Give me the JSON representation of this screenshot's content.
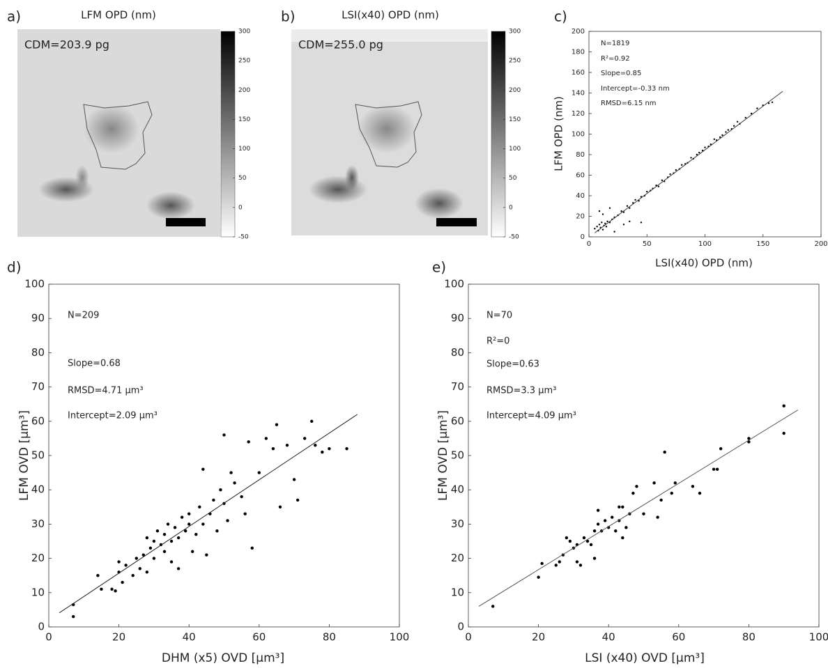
{
  "chart_data": [
    {
      "type": "image",
      "panel": "a)",
      "title": "LFM OPD (nm)",
      "annotations": [
        "CDM=203.9 pg"
      ],
      "clim": [
        -50,
        300
      ],
      "cticks": [
        300,
        250,
        200,
        150,
        100,
        50,
        0,
        -50
      ]
    },
    {
      "type": "image",
      "panel": "b)",
      "title": "LSI(x40) OPD (nm)",
      "annotations": [
        "CDM=255.0 pg"
      ],
      "clim": [
        -50,
        300
      ],
      "cticks": [
        300,
        250,
        200,
        150,
        100,
        50,
        0,
        -50
      ]
    },
    {
      "type": "scatter",
      "panel": "c)",
      "x_label": "LSI(x40) OPD (nm)",
      "y_label": "LFM OPD (nm)",
      "annotations": [
        "N=1819",
        "R²=0.92",
        "Slope=0.85",
        "Intercept=-0.33 nm",
        "RMSD=6.15 nm"
      ],
      "xlim": [
        0,
        200
      ],
      "ylim": [
        0,
        200
      ],
      "xticks": [
        0,
        50,
        100,
        150,
        200
      ],
      "yticks": [
        0,
        20,
        40,
        60,
        80,
        100,
        120,
        140,
        160,
        180,
        200
      ],
      "color": "#000000",
      "line_color": "#333333",
      "x": [
        5,
        7,
        8,
        9,
        10,
        11,
        12,
        13,
        14,
        15,
        16,
        18,
        20,
        22,
        25,
        28,
        30,
        33,
        35,
        38,
        40,
        43,
        45,
        48,
        50,
        53,
        55,
        58,
        60,
        63,
        65,
        68,
        70,
        73,
        75,
        78,
        80,
        83,
        85,
        88,
        90,
        93,
        95,
        98,
        100,
        103,
        105,
        108,
        110,
        113,
        115,
        118,
        120,
        123,
        125,
        128,
        130,
        135,
        140,
        145,
        150,
        155,
        158,
        18,
        22,
        30,
        35,
        12,
        9,
        45
      ],
      "values": [
        8,
        10,
        6,
        12,
        9,
        14,
        7,
        11,
        13,
        10,
        15,
        14,
        17,
        19,
        21,
        25,
        24,
        30,
        28,
        33,
        36,
        35,
        39,
        40,
        44,
        45,
        47,
        50,
        49,
        55,
        54,
        58,
        61,
        62,
        65,
        66,
        70,
        71,
        72,
        77,
        76,
        80,
        82,
        84,
        87,
        88,
        90,
        95,
        94,
        97,
        99,
        102,
        104,
        105,
        108,
        112,
        110,
        116,
        120,
        125,
        128,
        130,
        131,
        28,
        5,
        12,
        15,
        22,
        25,
        14
      ],
      "fit_x": [
        5,
        167
      ],
      "fit_y": [
        3.9,
        141.6
      ]
    },
    {
      "type": "scatter",
      "panel": "d)",
      "x_label": "DHM (x5) OVD [µm³]",
      "y_label": "LFM OVD [µm³]",
      "annotations": [
        "N=209",
        "Slope=0.68",
        "RMSD=4.71 µm³",
        "Intercept=2.09 µm³"
      ],
      "xlim": [
        0,
        100
      ],
      "ylim": [
        0,
        100
      ],
      "xticks": [
        0,
        20,
        40,
        60,
        80,
        100
      ],
      "yticks": [
        0,
        10,
        20,
        30,
        40,
        50,
        60,
        70,
        80,
        90,
        100
      ],
      "color": "#000000",
      "line_color": "#222222",
      "x": [
        7,
        7,
        14,
        15,
        18,
        19,
        20,
        20,
        21,
        22,
        24,
        25,
        26,
        27,
        28,
        28,
        29,
        30,
        30,
        31,
        32,
        33,
        33,
        34,
        35,
        35,
        36,
        37,
        37,
        38,
        39,
        40,
        40,
        41,
        42,
        43,
        44,
        44,
        45,
        46,
        47,
        48,
        49,
        50,
        50,
        51,
        52,
        53,
        55,
        56,
        57,
        58,
        60,
        62,
        64,
        65,
        66,
        68,
        70,
        71,
        73,
        75,
        76,
        78,
        80,
        85
      ],
      "values": [
        3,
        6.5,
        15,
        11,
        11,
        10.5,
        16,
        19,
        13,
        18,
        15,
        20,
        17,
        21,
        16,
        26,
        23,
        25,
        20,
        28,
        24,
        27,
        22,
        30,
        25,
        19,
        29,
        26,
        17,
        32,
        28,
        33,
        30,
        22,
        27,
        35,
        30,
        46,
        21,
        33,
        37,
        28,
        40,
        36,
        56,
        31,
        45,
        42,
        38,
        33,
        54,
        23,
        45,
        55,
        52,
        59,
        35,
        53,
        43,
        37,
        55,
        60,
        53,
        51,
        52,
        52
      ],
      "fit_x": [
        3,
        88
      ],
      "fit_y": [
        4.1,
        62
      ]
    },
    {
      "type": "scatter",
      "panel": "e)",
      "x_label": "LSI (x40) OVD [µm³]",
      "y_label": "LFM OVD [µm³]",
      "annotations": [
        "N=70",
        "R²=0",
        "Slope=0.63",
        "RMSD=3.3 µm³",
        "Intercept=4.09 µm³"
      ],
      "xlim": [
        0,
        100
      ],
      "ylim": [
        0,
        100
      ],
      "xticks": [
        0,
        20,
        40,
        60,
        80,
        100
      ],
      "yticks": [
        0,
        10,
        20,
        30,
        40,
        50,
        60,
        70,
        80,
        90,
        100
      ],
      "color": "#000000",
      "line_color": "#555555",
      "x": [
        7,
        20,
        21,
        25,
        26,
        27,
        28,
        29,
        30,
        31,
        31,
        32,
        33,
        34,
        35,
        36,
        36,
        37,
        37,
        38,
        39,
        40,
        41,
        42,
        43,
        43,
        44,
        44,
        45,
        46,
        47,
        48,
        50,
        53,
        54,
        55,
        56,
        58,
        59,
        64,
        66,
        70,
        71,
        72,
        80,
        80,
        90,
        90
      ],
      "values": [
        6,
        14.5,
        18.5,
        18,
        19,
        21,
        26,
        25,
        23,
        24,
        19,
        18,
        26,
        25,
        24,
        28,
        20,
        34,
        30,
        28,
        31,
        29,
        32,
        28,
        35,
        31,
        26,
        35,
        29,
        33,
        39,
        41,
        33,
        42,
        32,
        37,
        51,
        39,
        42,
        41,
        39,
        46,
        46,
        52,
        54,
        55,
        64.5,
        56.5
      ],
      "fit_x": [
        3,
        94
      ],
      "fit_y": [
        6,
        63.3
      ]
    }
  ]
}
